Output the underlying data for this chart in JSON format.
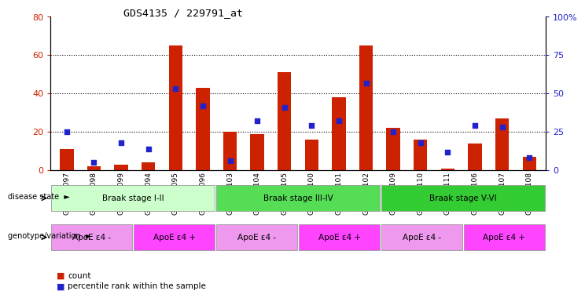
{
  "title": "GDS4135 / 229791_at",
  "samples": [
    "GSM735097",
    "GSM735098",
    "GSM735099",
    "GSM735094",
    "GSM735095",
    "GSM735096",
    "GSM735103",
    "GSM735104",
    "GSM735105",
    "GSM735100",
    "GSM735101",
    "GSM735102",
    "GSM735109",
    "GSM735110",
    "GSM735111",
    "GSM735106",
    "GSM735107",
    "GSM735108"
  ],
  "counts": [
    11,
    2,
    3,
    4,
    65,
    43,
    20,
    19,
    51,
    16,
    38,
    65,
    22,
    16,
    1,
    14,
    27,
    7
  ],
  "percentiles": [
    25,
    5,
    18,
    14,
    53,
    42,
    6,
    32,
    41,
    29,
    32,
    57,
    25,
    18,
    12,
    29,
    28,
    8
  ],
  "ylim_left": [
    0,
    80
  ],
  "ylim_right": [
    0,
    100
  ],
  "yticks_left": [
    0,
    20,
    40,
    60,
    80
  ],
  "yticks_right": [
    0,
    25,
    50,
    75,
    100
  ],
  "bar_color": "#cc2200",
  "dot_color": "#2222cc",
  "bg_color": "#ffffff",
  "disease_groups": [
    {
      "label": "Braak stage I-II",
      "start": 0,
      "end": 6,
      "color": "#ccffcc"
    },
    {
      "label": "Braak stage III-IV",
      "start": 6,
      "end": 12,
      "color": "#55dd55"
    },
    {
      "label": "Braak stage V-VI",
      "start": 12,
      "end": 18,
      "color": "#33cc33"
    }
  ],
  "genotype_groups": [
    {
      "label": "ApoE ε4 -",
      "start": 0,
      "end": 3,
      "color": "#ee99ee"
    },
    {
      "label": "ApoE ε4 +",
      "start": 3,
      "end": 6,
      "color": "#ff44ff"
    },
    {
      "label": "ApoE ε4 -",
      "start": 6,
      "end": 9,
      "color": "#ee99ee"
    },
    {
      "label": "ApoE ε4 +",
      "start": 9,
      "end": 12,
      "color": "#ff44ff"
    },
    {
      "label": "ApoE ε4 -",
      "start": 12,
      "end": 15,
      "color": "#ee99ee"
    },
    {
      "label": "ApoE ε4 +",
      "start": 15,
      "end": 18,
      "color": "#ff44ff"
    }
  ]
}
